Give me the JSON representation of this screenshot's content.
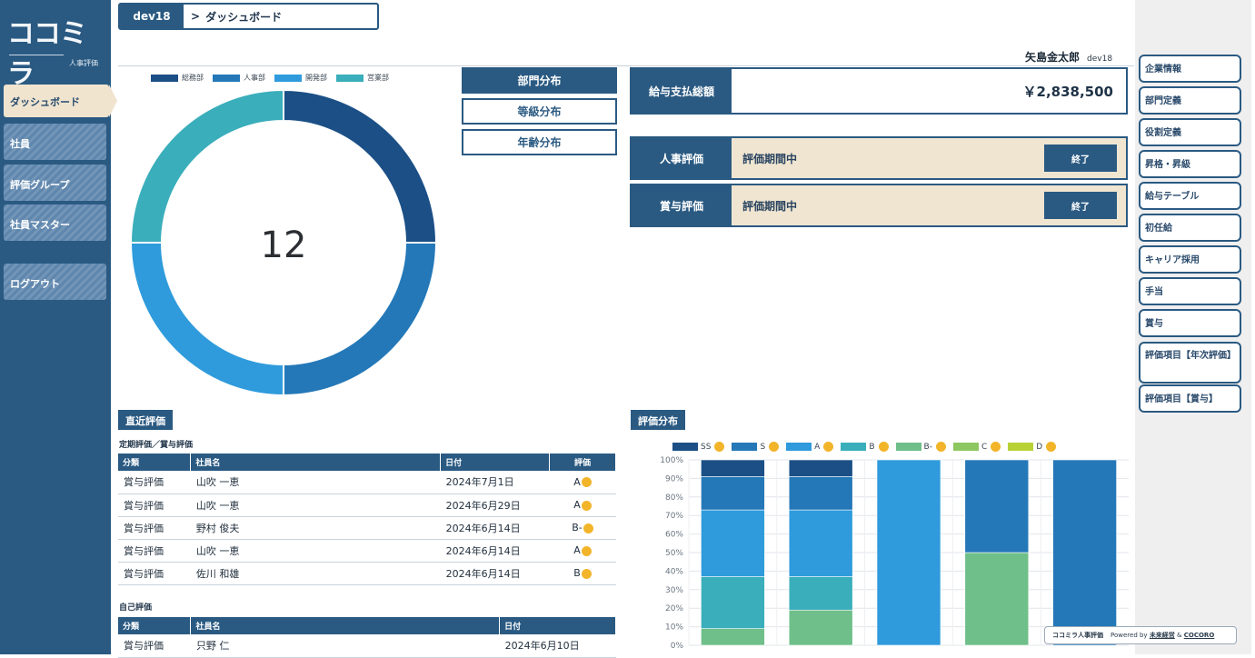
{
  "logo": {
    "mark": "ココミラ",
    "sub": "人事評価"
  },
  "sidebar": {
    "items": [
      {
        "label": "ダッシュボード",
        "active": true
      },
      {
        "label": "社員",
        "active": false
      },
      {
        "label": "評価グループ",
        "active": false
      },
      {
        "label": "社員マスター",
        "active": false
      },
      {
        "label": "ログアウト",
        "active": false
      }
    ]
  },
  "header": {
    "org": "dev18",
    "chevron": ">",
    "page": "ダッシュボード"
  },
  "user": {
    "name": "矢島金太郎",
    "org": "dev18"
  },
  "donut": {
    "legend": [
      {
        "name": "総務部",
        "color": "#1b4f86"
      },
      {
        "name": "人事部",
        "color": "#2478b8"
      },
      {
        "name": "開発部",
        "color": "#2f9bdc"
      },
      {
        "name": "営業部",
        "color": "#3aaebb"
      }
    ],
    "values": [
      3,
      3,
      3,
      3
    ],
    "center": "12"
  },
  "dist_buttons": [
    {
      "label": "部門分布",
      "active": true
    },
    {
      "label": "等級分布",
      "active": false
    },
    {
      "label": "年齢分布",
      "active": false
    }
  ],
  "salary": {
    "label": "給与支払総額",
    "value": "￥2,838,500"
  },
  "evaluations": [
    {
      "label": "人事評価",
      "status": "評価期間中",
      "end": "終了"
    },
    {
      "label": "賞与評価",
      "status": "評価期間中",
      "end": "終了"
    }
  ],
  "rightbar": {
    "items": [
      "企業情報",
      "部門定義",
      "役割定義",
      "昇格・昇級",
      "給与テーブル",
      "初任給",
      "キャリア採用",
      "手当",
      "賞与",
      "評価項目【年次評価】",
      "評価項目【賞与】"
    ]
  },
  "recent": {
    "title": "直近評価",
    "periodic": {
      "title": "定期評価／賞与評価",
      "headers": [
        "分類",
        "社員名",
        "日付",
        "評価"
      ],
      "rows": [
        [
          "賞与評価",
          "山吹 一恵",
          "2024年7月1日",
          "A"
        ],
        [
          "賞与評価",
          "山吹 一恵",
          "2024年6月29日",
          "A"
        ],
        [
          "賞与評価",
          "野村 俊夫",
          "2024年6月14日",
          "B-"
        ],
        [
          "賞与評価",
          "山吹 一恵",
          "2024年6月14日",
          "A"
        ],
        [
          "賞与評価",
          "佐川 和雄",
          "2024年6月14日",
          "B"
        ]
      ]
    },
    "self": {
      "title": "自己評価",
      "headers": [
        "分類",
        "社員名",
        "日付"
      ],
      "rows": [
        [
          "賞与評価",
          "只野 仁",
          "2024年6月10日"
        ]
      ]
    }
  },
  "chart_data": {
    "type": "bar",
    "stacked": true,
    "title": "評価分布",
    "series": [
      {
        "name": "SS",
        "color": "#1b4f86",
        "values": [
          9,
          9,
          0,
          0,
          0
        ]
      },
      {
        "name": "S",
        "color": "#2478b8",
        "values": [
          18,
          18,
          0,
          50,
          100
        ]
      },
      {
        "name": "A",
        "color": "#2f9bdc",
        "values": [
          36,
          36,
          100,
          0,
          0
        ]
      },
      {
        "name": "B",
        "color": "#3aaebb",
        "values": [
          28,
          18,
          0,
          0,
          0
        ]
      },
      {
        "name": "B-",
        "color": "#6fbf8a",
        "values": [
          9,
          19,
          0,
          50,
          0
        ]
      },
      {
        "name": "C",
        "color": "#8cc760",
        "values": [
          0,
          0,
          0,
          0,
          0
        ]
      },
      {
        "name": "D",
        "color": "#b8d236",
        "values": [
          0,
          0,
          0,
          0,
          0
        ]
      }
    ],
    "ylim": [
      0,
      100
    ],
    "yticks": [
      "0%",
      "10%",
      "20%",
      "30%",
      "40%",
      "50%",
      "60%",
      "70%",
      "80%",
      "90%",
      "100%"
    ],
    "grid": true,
    "legend": "top"
  },
  "footer": {
    "brand": "ココミラ人事評価",
    "powered": "Powered by",
    "company1": "未来経営",
    "amp": "&",
    "company2": "COCORO"
  }
}
